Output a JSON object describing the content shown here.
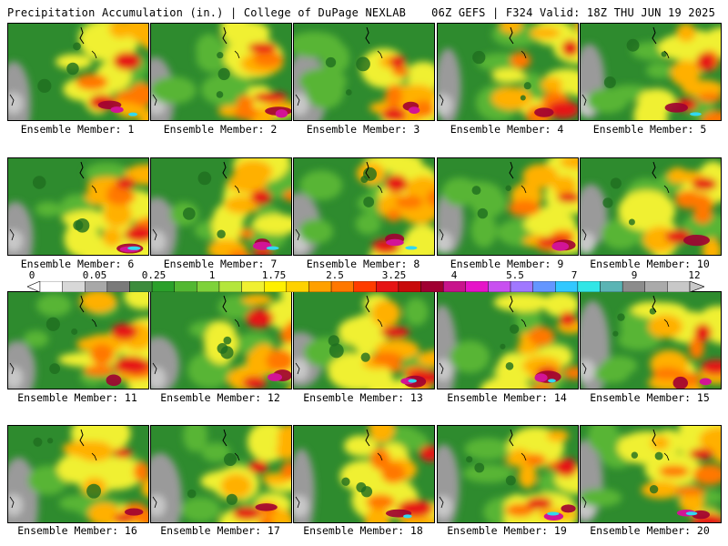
{
  "header": {
    "left_title": "Precipitation Accumulation (in.) | College of DuPage NEXLAB",
    "right_title": "06Z GEFS | F324 Valid: 18Z THU JUN 19 2025"
  },
  "colorbar": {
    "tick_labels": [
      "0",
      "0.05",
      "0.25",
      "1",
      "1.75",
      "2.5",
      "3.25",
      "4",
      "5.5",
      "7",
      "9",
      "12"
    ],
    "colors": [
      "#ffffff",
      "#d8d8d8",
      "#a8a8a8",
      "#7a7a7a",
      "#3c8c3c",
      "#2aa02a",
      "#52b832",
      "#7ed23a",
      "#b4e63c",
      "#f0f032",
      "#fff000",
      "#ffd200",
      "#ffa000",
      "#ff7800",
      "#ff3c00",
      "#e61414",
      "#c80a0a",
      "#a00032",
      "#c8148c",
      "#e614c8",
      "#c850f0",
      "#a078ff",
      "#6496ff",
      "#32c8ff",
      "#32e6e6",
      "#5ab4b4",
      "#8c8c8c",
      "#aaaaaa",
      "#c8c8c8"
    ]
  },
  "members": [
    {
      "label": "Ensemble Member: 1"
    },
    {
      "label": "Ensemble Member: 2"
    },
    {
      "label": "Ensemble Member: 3"
    },
    {
      "label": "Ensemble Member: 4"
    },
    {
      "label": "Ensemble Member: 5"
    },
    {
      "label": "Ensemble Member: 6"
    },
    {
      "label": "Ensemble Member: 7"
    },
    {
      "label": "Ensemble Member: 8"
    },
    {
      "label": "Ensemble Member: 9"
    },
    {
      "label": "Ensemble Member: 10"
    },
    {
      "label": "Ensemble Member: 11"
    },
    {
      "label": "Ensemble Member: 12"
    },
    {
      "label": "Ensemble Member: 13"
    },
    {
      "label": "Ensemble Member: 14"
    },
    {
      "label": "Ensemble Member: 15"
    },
    {
      "label": "Ensemble Member: 16"
    },
    {
      "label": "Ensemble Member: 17"
    },
    {
      "label": "Ensemble Member: 18"
    },
    {
      "label": "Ensemble Member: 19"
    },
    {
      "label": "Ensemble Member: 20"
    }
  ]
}
